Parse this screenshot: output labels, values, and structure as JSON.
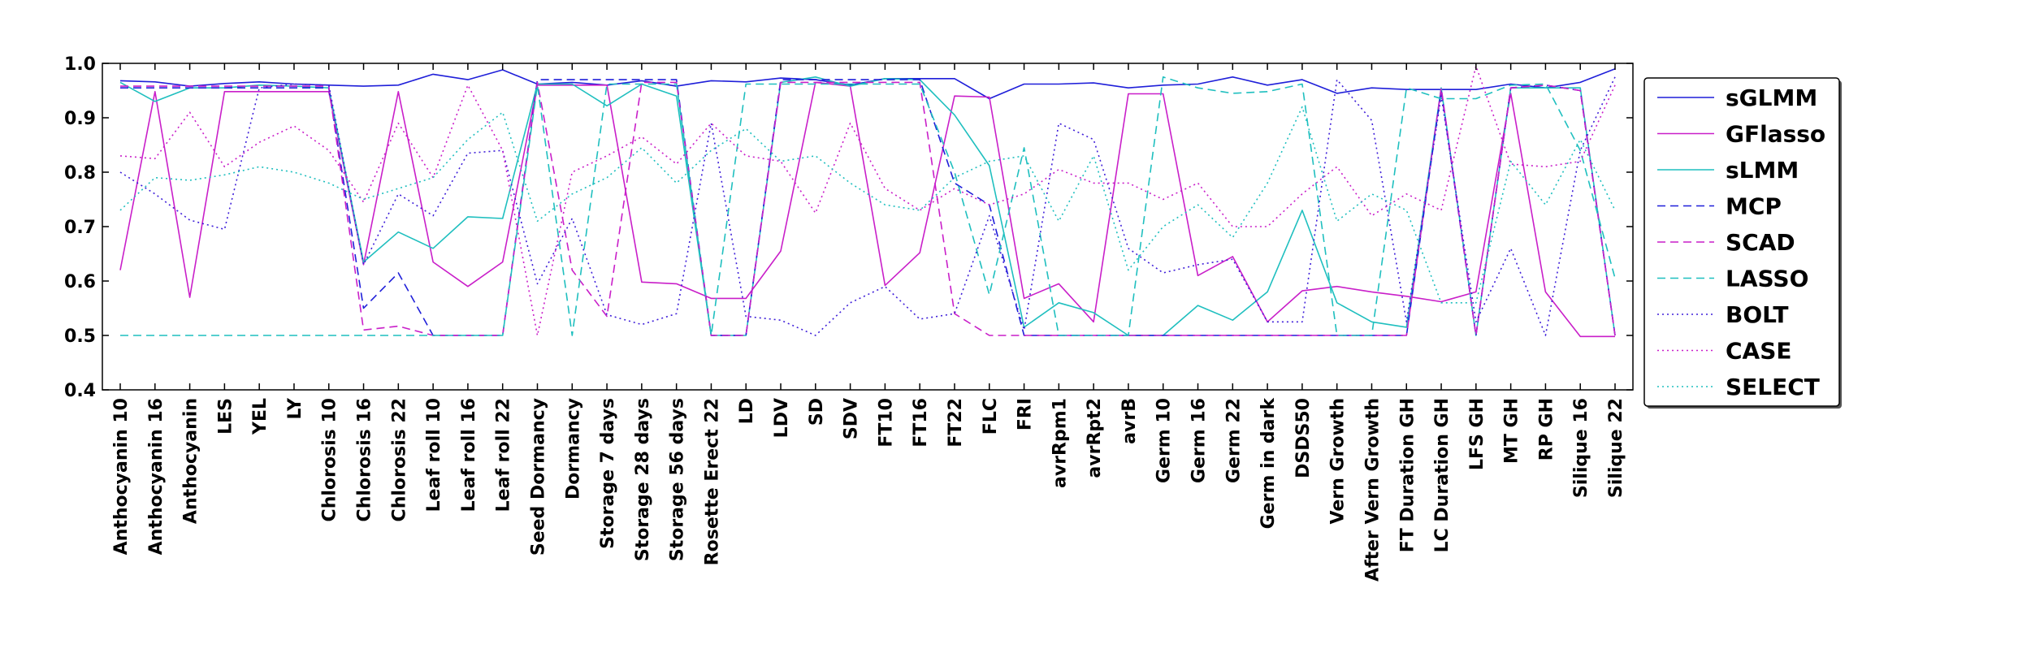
{
  "chart_data": {
    "type": "line",
    "title": "",
    "xlabel": "",
    "ylabel": "",
    "ylim": [
      0.4,
      1.0
    ],
    "yticks": [
      "0.4",
      "0.5",
      "0.6",
      "0.7",
      "0.8",
      "0.9",
      "1.0"
    ],
    "grid": false,
    "legend_position": "right",
    "categories": [
      "Anthocyanin 10",
      "Anthocyanin 16",
      "Anthocyanin",
      "LES",
      "YEL",
      "LY",
      "Chlorosis 10",
      "Chlorosis 16",
      "Chlorosis 22",
      "Leaf roll 10",
      "Leaf roll 16",
      "Leaf roll 22",
      "Seed Dormancy",
      "Dormancy",
      "Storage 7 days",
      "Storage 28 days",
      "Storage 56 days",
      "Rosette Erect 22",
      "LD",
      "LDV",
      "SD",
      "SDV",
      "FT10",
      "FT16",
      "FT22",
      "FLC",
      "FRI",
      "avrRpm1",
      "avrRpt2",
      "avrB",
      "Germ 10",
      "Germ 16",
      "Germ 22",
      "Germ in dark",
      "DSDS50",
      "Vern Growth",
      "After Vern Growth",
      "FT Duration GH",
      "LC Duration GH",
      "LFS GH",
      "MT GH",
      "RP GH",
      "Silique 16",
      "Silique 22"
    ],
    "series": [
      {
        "name": "sGLMM",
        "color": "#1f1fd9",
        "dash": "solid",
        "values": [
          0.968,
          0.966,
          0.958,
          0.963,
          0.966,
          0.962,
          0.96,
          0.958,
          0.96,
          0.98,
          0.97,
          0.988,
          0.962,
          0.965,
          0.96,
          0.968,
          0.958,
          0.968,
          0.966,
          0.973,
          0.97,
          0.96,
          0.972,
          0.972,
          0.972,
          0.935,
          0.962,
          0.962,
          0.964,
          0.955,
          0.96,
          0.962,
          0.975,
          0.96,
          0.97,
          0.945,
          0.955,
          0.952,
          0.952,
          0.952,
          0.962,
          0.955,
          0.965,
          0.99
        ]
      },
      {
        "name": "GFlasso",
        "color": "#c91fc9",
        "dash": "solid",
        "values": [
          0.62,
          0.948,
          0.57,
          0.948,
          0.948,
          0.948,
          0.948,
          0.63,
          0.948,
          0.635,
          0.59,
          0.635,
          0.96,
          0.96,
          0.96,
          0.598,
          0.595,
          0.568,
          0.568,
          0.655,
          0.965,
          0.958,
          0.592,
          0.652,
          0.94,
          0.938,
          0.568,
          0.595,
          0.525,
          0.944,
          0.944,
          0.61,
          0.645,
          0.525,
          0.582,
          0.59,
          0.58,
          0.572,
          0.562,
          0.58,
          0.945,
          0.58,
          0.498,
          0.498
        ]
      },
      {
        "name": "sLMM",
        "color": "#1fbfbf",
        "dash": "solid",
        "values": [
          0.965,
          0.93,
          0.955,
          0.955,
          0.96,
          0.958,
          0.955,
          0.635,
          0.69,
          0.66,
          0.718,
          0.715,
          0.962,
          0.962,
          0.922,
          0.962,
          0.94,
          0.5,
          0.5,
          0.965,
          0.975,
          0.958,
          0.972,
          0.97,
          0.905,
          0.812,
          0.515,
          0.56,
          0.542,
          0.5,
          0.5,
          0.555,
          0.528,
          0.58,
          0.73,
          0.56,
          0.525,
          0.515,
          0.955,
          0.5,
          0.955,
          0.955,
          0.955,
          0.5
        ]
      },
      {
        "name": "MCP",
        "color": "#1f1fd9",
        "dash": "dash",
        "values": [
          0.955,
          0.955,
          0.955,
          0.955,
          0.955,
          0.955,
          0.955,
          0.55,
          0.615,
          0.5,
          0.5,
          0.5,
          0.97,
          0.97,
          0.97,
          0.97,
          0.97,
          0.5,
          0.5,
          0.97,
          0.97,
          0.97,
          0.97,
          0.97,
          0.78,
          0.74,
          0.5,
          0.5,
          0.5,
          0.5,
          0.5,
          0.5,
          0.5,
          0.5,
          0.5,
          0.5,
          0.5,
          0.5,
          0.95,
          0.5,
          0.955,
          0.96,
          0.95,
          0.5
        ]
      },
      {
        "name": "SCAD",
        "color": "#c91fc9",
        "dash": "dash",
        "values": [
          0.958,
          0.958,
          0.958,
          0.958,
          0.958,
          0.958,
          0.958,
          0.51,
          0.517,
          0.5,
          0.5,
          0.5,
          0.965,
          0.62,
          0.535,
          0.965,
          0.965,
          0.5,
          0.5,
          0.965,
          0.965,
          0.965,
          0.965,
          0.965,
          0.54,
          0.5,
          0.5,
          0.5,
          0.5,
          0.5,
          0.5,
          0.5,
          0.5,
          0.5,
          0.5,
          0.5,
          0.5,
          0.5,
          0.955,
          0.5,
          0.955,
          0.96,
          0.95,
          0.5
        ]
      },
      {
        "name": "LASSO",
        "color": "#1fbfbf",
        "dash": "dash",
        "values": [
          0.5,
          0.5,
          0.5,
          0.5,
          0.5,
          0.5,
          0.5,
          0.5,
          0.5,
          0.5,
          0.5,
          0.5,
          0.96,
          0.5,
          0.962,
          0.962,
          0.962,
          0.5,
          0.962,
          0.962,
          0.962,
          0.962,
          0.962,
          0.962,
          0.8,
          0.575,
          0.845,
          0.5,
          0.5,
          0.5,
          0.975,
          0.955,
          0.945,
          0.948,
          0.962,
          0.5,
          0.5,
          0.955,
          0.935,
          0.935,
          0.96,
          0.962,
          0.84,
          0.605
        ]
      },
      {
        "name": "BOLT",
        "color": "#3f1fd9",
        "dash": "dot",
        "values": [
          0.8,
          0.76,
          0.712,
          0.695,
          0.955,
          0.962,
          0.96,
          0.63,
          0.76,
          0.72,
          0.835,
          0.84,
          0.595,
          0.715,
          0.538,
          0.52,
          0.54,
          0.89,
          0.535,
          0.528,
          0.5,
          0.56,
          0.59,
          0.53,
          0.54,
          0.72,
          0.51,
          0.89,
          0.86,
          0.66,
          0.615,
          0.63,
          0.64,
          0.525,
          0.525,
          0.97,
          0.895,
          0.525,
          0.94,
          0.525,
          0.66,
          0.5,
          0.84,
          0.975
        ]
      },
      {
        "name": "CASE",
        "color": "#c91fc9",
        "dash": "dot",
        "values": [
          0.83,
          0.825,
          0.91,
          0.81,
          0.855,
          0.885,
          0.84,
          0.745,
          0.89,
          0.79,
          0.96,
          0.84,
          0.5,
          0.8,
          0.83,
          0.865,
          0.815,
          0.89,
          0.83,
          0.82,
          0.725,
          0.89,
          0.77,
          0.73,
          0.77,
          0.74,
          0.76,
          0.805,
          0.78,
          0.78,
          0.75,
          0.78,
          0.7,
          0.7,
          0.76,
          0.81,
          0.72,
          0.76,
          0.73,
          0.995,
          0.815,
          0.81,
          0.82,
          0.96
        ]
      },
      {
        "name": "SELECT",
        "color": "#1fbfbf",
        "dash": "dot",
        "values": [
          0.73,
          0.79,
          0.785,
          0.795,
          0.81,
          0.8,
          0.78,
          0.75,
          0.77,
          0.79,
          0.86,
          0.91,
          0.71,
          0.76,
          0.79,
          0.845,
          0.78,
          0.84,
          0.88,
          0.82,
          0.83,
          0.78,
          0.74,
          0.73,
          0.79,
          0.82,
          0.83,
          0.71,
          0.83,
          0.62,
          0.7,
          0.74,
          0.68,
          0.78,
          0.92,
          0.71,
          0.76,
          0.73,
          0.56,
          0.56,
          0.82,
          0.74,
          0.86,
          0.73
        ]
      }
    ]
  }
}
